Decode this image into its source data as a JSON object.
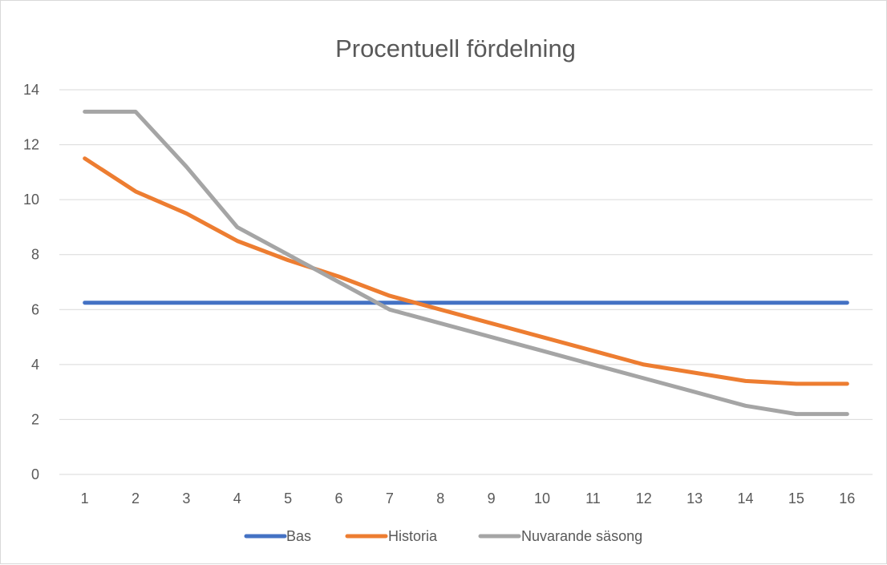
{
  "chart_data": {
    "type": "line",
    "title": "Procentuell fördelning",
    "xlabel": "",
    "ylabel": "",
    "x": [
      "1",
      "2",
      "3",
      "4",
      "5",
      "6",
      "7",
      "8",
      "9",
      "10",
      "11",
      "12",
      "13",
      "14",
      "15",
      "16"
    ],
    "ylim": [
      0,
      14
    ],
    "yticks": [
      "0",
      "2",
      "4",
      "6",
      "8",
      "10",
      "12",
      "14"
    ],
    "grid": true,
    "legend_position": "bottom",
    "series": [
      {
        "name": "Bas",
        "color": "#4472c4",
        "values": [
          6.25,
          6.25,
          6.25,
          6.25,
          6.25,
          6.25,
          6.25,
          6.25,
          6.25,
          6.25,
          6.25,
          6.25,
          6.25,
          6.25,
          6.25,
          6.25
        ]
      },
      {
        "name": "Historia",
        "color": "#ed7d31",
        "values": [
          11.5,
          10.3,
          9.5,
          8.5,
          7.8,
          7.2,
          6.5,
          6.0,
          5.5,
          5.0,
          4.5,
          4.0,
          3.7,
          3.4,
          3.3,
          3.3
        ]
      },
      {
        "name": "Nuvarande säsong",
        "color": "#a5a5a5",
        "values": [
          13.2,
          13.2,
          11.2,
          9.0,
          8.0,
          7.0,
          6.0,
          5.5,
          5.0,
          4.5,
          4.0,
          3.5,
          3.0,
          2.5,
          2.2,
          2.2
        ]
      }
    ]
  }
}
